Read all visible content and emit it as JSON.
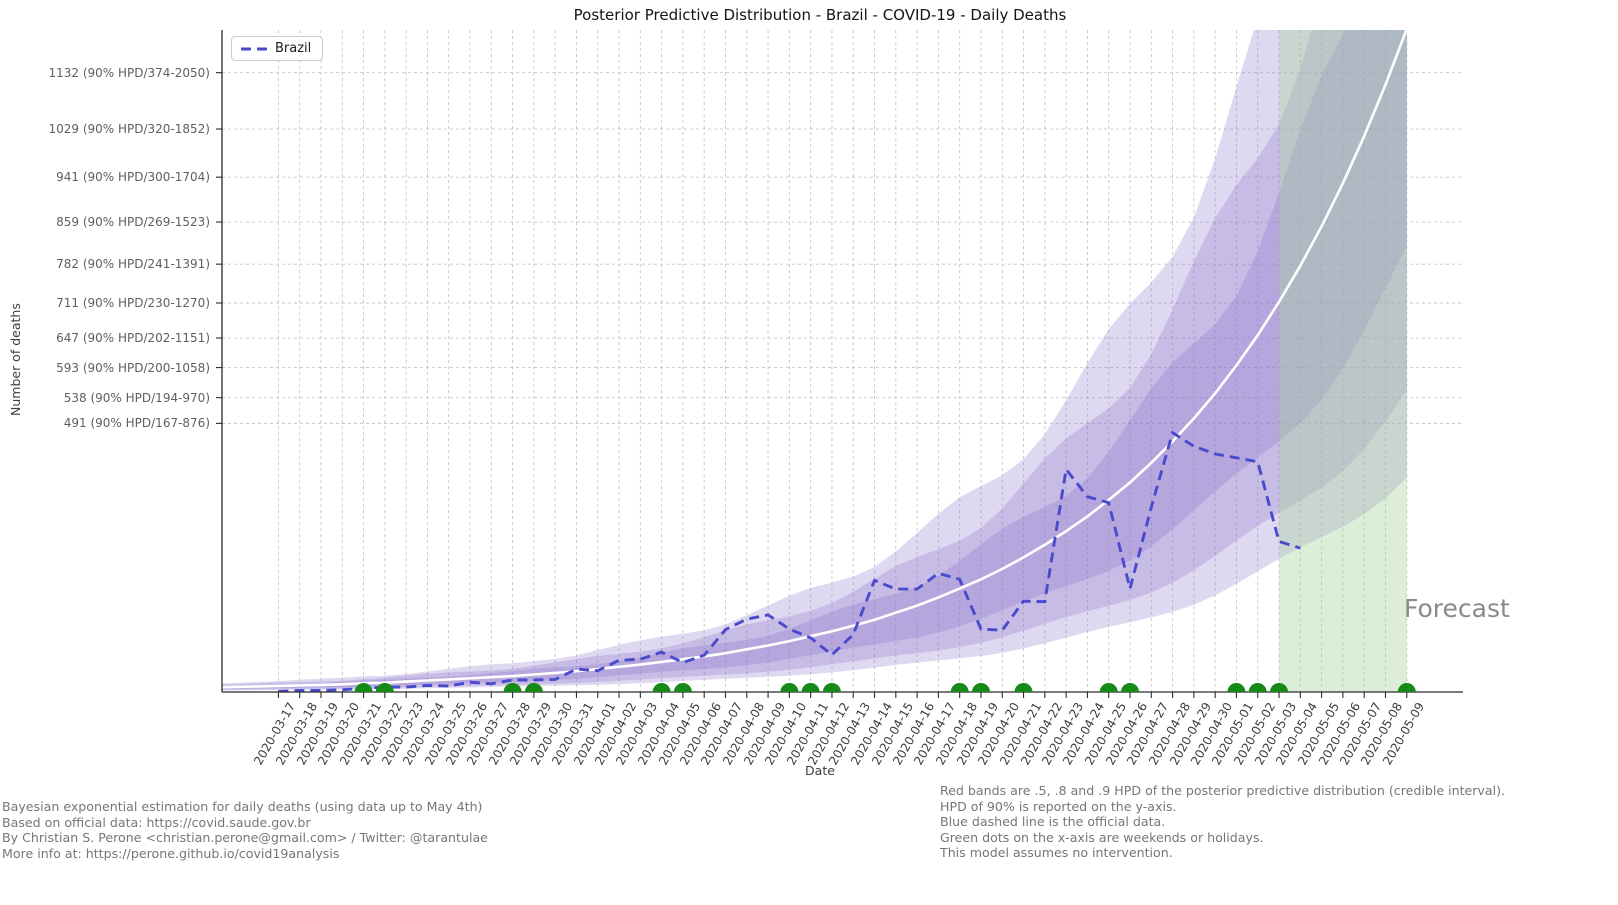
{
  "title": "Posterior Predictive Distribution - Brazil - COVID-19 - Daily Deaths",
  "legend": {
    "label": "Brazil"
  },
  "axes": {
    "x_label": "Date",
    "y_label": "Number of deaths"
  },
  "forecast_label": "Forecast",
  "footer_left": {
    "lines": [
      "Bayesian exponential estimation for daily deaths (using data up to May 4th)",
      "Based on official data: https://covid.saude.gov.br",
      "By Christian S. Perone <christian.perone@gmail.com> / Twitter: @tarantulae",
      "More info at: https://perone.github.io/covid19analysis"
    ]
  },
  "footer_right": {
    "lines": [
      "Red bands are .5, .8 and .9 HPD of the posterior predictive distribution (credible interval).",
      "HPD of 90% is reported on the y-axis.",
      "Blue dashed line is the official data.",
      "Green dots on the x-axis are weekends or holidays.",
      "This model assumes no intervention.",
      ""
    ]
  },
  "colors": {
    "line_blue": "#4a4acd",
    "median_white": "#ffffff",
    "band_purple": "#8873c9",
    "forecast_green": "#a8d49e",
    "dot_green": "#168a16",
    "grid": "#c6c6c6",
    "spine": "#2b2b2b"
  },
  "chart_data": {
    "type": "line",
    "x": [
      "2020-03-17",
      "2020-03-18",
      "2020-03-19",
      "2020-03-20",
      "2020-03-21",
      "2020-03-22",
      "2020-03-23",
      "2020-03-24",
      "2020-03-25",
      "2020-03-26",
      "2020-03-27",
      "2020-03-28",
      "2020-03-29",
      "2020-03-30",
      "2020-03-31",
      "2020-04-01",
      "2020-04-02",
      "2020-04-03",
      "2020-04-04",
      "2020-04-05",
      "2020-04-06",
      "2020-04-07",
      "2020-04-08",
      "2020-04-09",
      "2020-04-10",
      "2020-04-11",
      "2020-04-12",
      "2020-04-13",
      "2020-04-14",
      "2020-04-15",
      "2020-04-16",
      "2020-04-17",
      "2020-04-18",
      "2020-04-19",
      "2020-04-20",
      "2020-04-21",
      "2020-04-22",
      "2020-04-23",
      "2020-04-24",
      "2020-04-25",
      "2020-04-26",
      "2020-04-27",
      "2020-04-28",
      "2020-04-29",
      "2020-04-30",
      "2020-05-01",
      "2020-05-02",
      "2020-05-03",
      "2020-05-04",
      "2020-05-05",
      "2020-05-06",
      "2020-05-07",
      "2020-05-08",
      "2020-05-09"
    ],
    "series": [
      {
        "name": "Brazil official daily deaths (blue dashed)",
        "style": "dashed",
        "last_date": "2020-05-04",
        "values": [
          1,
          3,
          3,
          4,
          7,
          9,
          9,
          12,
          11,
          18,
          15,
          22,
          22,
          23,
          42,
          39,
          58,
          60,
          73,
          54,
          67,
          114,
          133,
          141,
          115,
          99,
          68,
          105,
          204,
          188,
          188,
          217,
          206,
          115,
          113,
          166,
          165,
          407,
          357,
          346,
          189,
          338,
          474,
          449,
          435,
          428,
          421,
          275,
          263
        ]
      },
      {
        "name": "Posterior predictive median (white solid)",
        "style": "solid",
        "values": [
          11,
          12,
          13,
          14,
          16,
          17,
          19,
          21,
          23,
          25,
          27,
          29,
          32,
          35,
          38,
          42,
          46,
          50,
          55,
          60,
          65,
          71,
          78,
          85,
          93,
          102,
          111,
          121,
          132,
          145,
          158,
          173,
          189,
          206,
          225,
          246,
          269,
          294,
          321,
          351,
          383,
          419,
          458,
          500,
          546,
          597,
          652,
          713,
          779,
          851,
          930,
          1016,
          1110,
          1212
        ]
      }
    ],
    "hpd_bands": [
      {
        "level": 0.9,
        "lower_mult": 0.33,
        "upper_mult": 1.81
      },
      {
        "level": 0.8,
        "lower_mult": 0.45,
        "upper_mult": 1.52
      },
      {
        "level": 0.5,
        "lower_mult": 0.65,
        "upper_mult": 1.27
      }
    ],
    "y_ticks": [
      {
        "value": 491,
        "label": "491 (90% HPD/167-876)"
      },
      {
        "value": 538,
        "label": "538 (90% HPD/194-970)"
      },
      {
        "value": 593,
        "label": "593 (90% HPD/200-1058)"
      },
      {
        "value": 647,
        "label": "647 (90% HPD/202-1151)"
      },
      {
        "value": 711,
        "label": "711 (90% HPD/230-1270)"
      },
      {
        "value": 782,
        "label": "782 (90% HPD/241-1391)"
      },
      {
        "value": 859,
        "label": "859 (90% HPD/269-1523)"
      },
      {
        "value": 941,
        "label": "941 (90% HPD/300-1704)"
      },
      {
        "value": 1029,
        "label": "1029 (90% HPD/320-1852)"
      },
      {
        "value": 1132,
        "label": "1132 (90% HPD/374-2050)"
      }
    ],
    "weekend_holiday_dates": [
      "2020-03-21",
      "2020-03-22",
      "2020-03-28",
      "2020-03-29",
      "2020-04-04",
      "2020-04-05",
      "2020-04-10",
      "2020-04-11",
      "2020-04-12",
      "2020-04-18",
      "2020-04-19",
      "2020-04-21",
      "2020-04-25",
      "2020-04-26",
      "2020-05-01",
      "2020-05-02",
      "2020-05-03",
      "2020-05-09"
    ],
    "forecast_region": {
      "start": "2020-05-03",
      "end": "2020-05-09"
    },
    "ylim": [
      0,
      1210
    ],
    "grid": true,
    "legend_position": "upper left"
  }
}
